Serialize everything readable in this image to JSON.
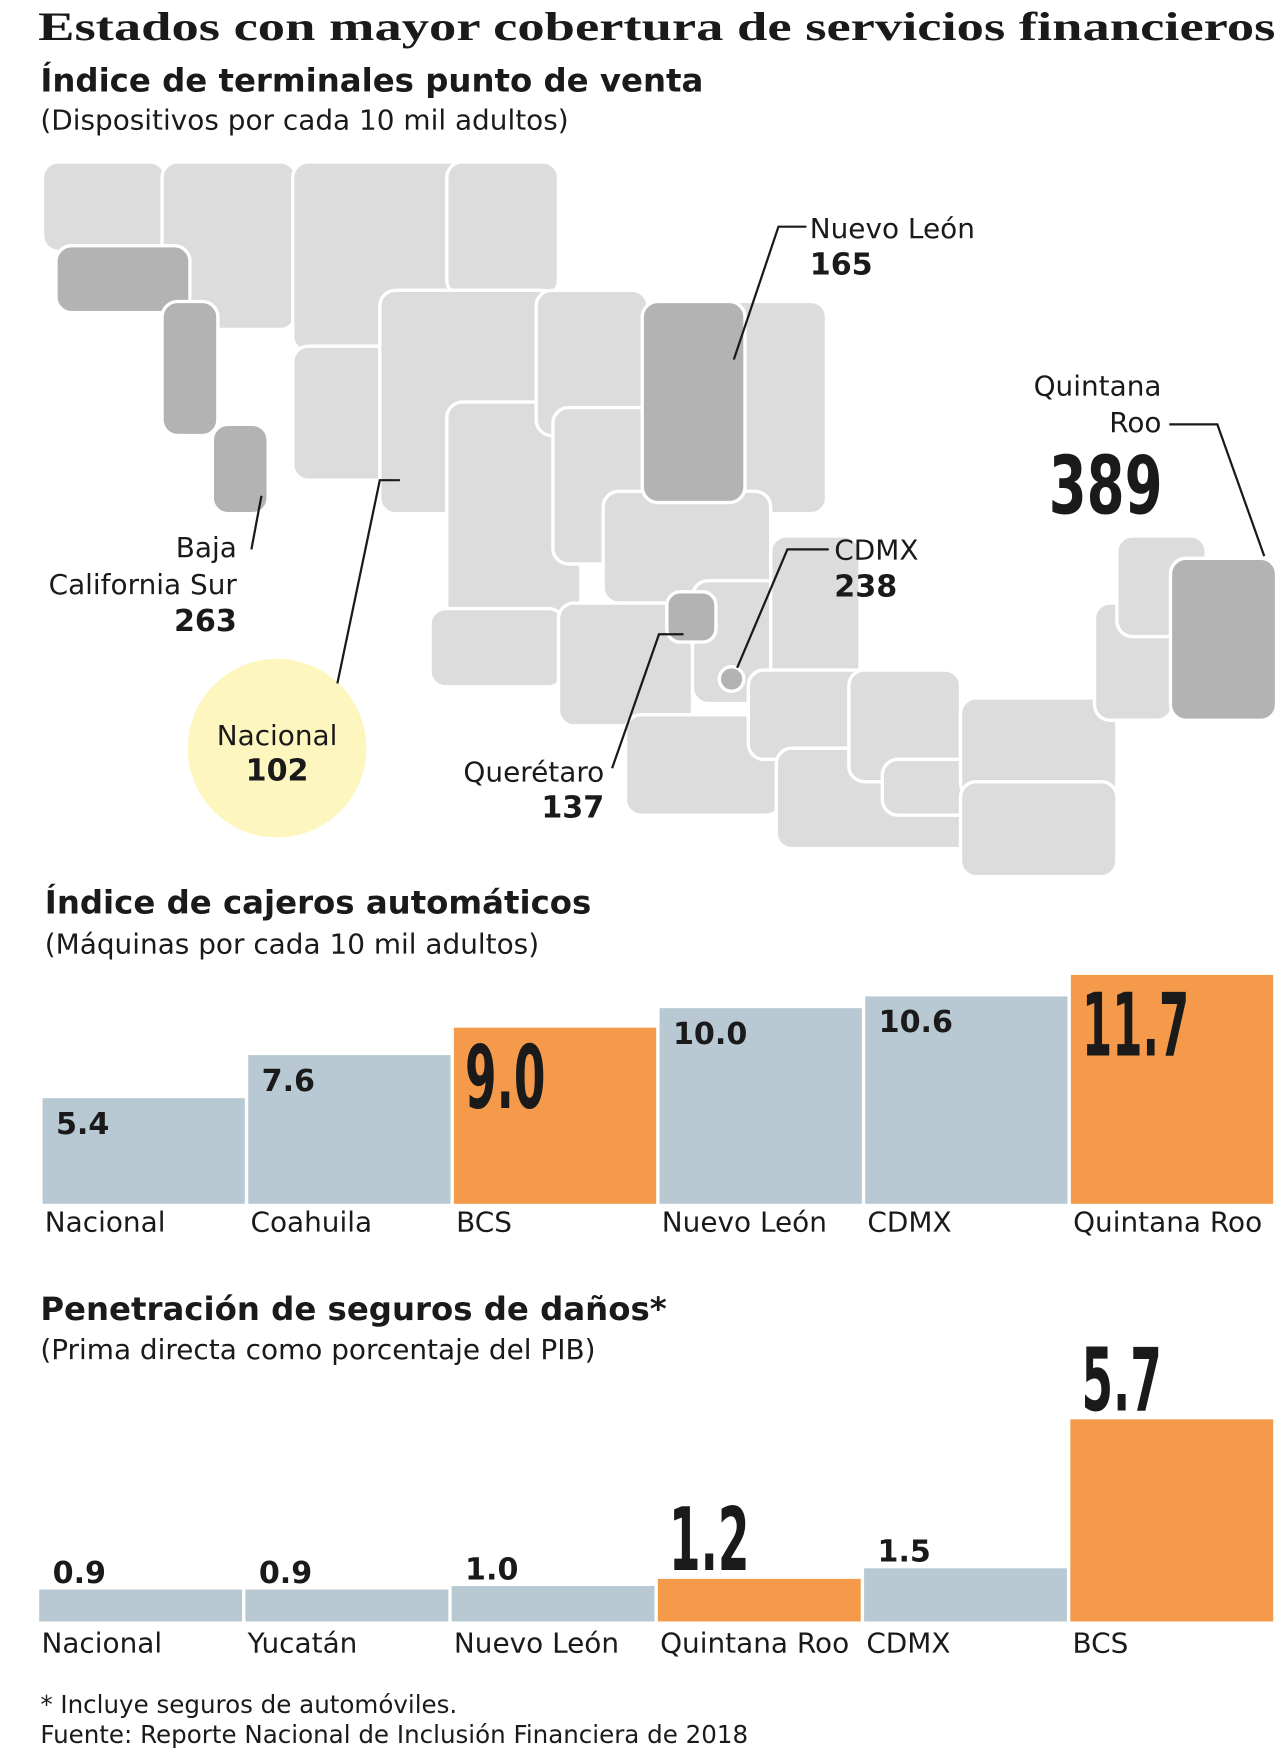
{
  "title": "Estados con mayor cobertura de servicios financieros",
  "chart_data": [
    {
      "type": "map",
      "title": "Índice de terminales punto de venta",
      "subtitle": "(Dispositivos por cada 10 mil adultos)",
      "regions": [
        {
          "name": [
            "Nuevo León"
          ],
          "value": 165
        },
        {
          "name": [
            "Quintana",
            "Roo"
          ],
          "value": 389
        },
        {
          "name": [
            "CDMX"
          ],
          "value": 238
        },
        {
          "name": [
            "Baja",
            "California Sur"
          ],
          "value": 263
        },
        {
          "name": [
            "Querétaro"
          ],
          "value": 137
        },
        {
          "name": [
            "Nacional"
          ],
          "value": 102
        }
      ]
    },
    {
      "type": "bar",
      "title": "Índice de cajeros automáticos",
      "subtitle": "(Máquinas por cada 10 mil adultos)",
      "categories": [
        "Nacional",
        "Coahuila",
        "BCS",
        "Nuevo León",
        "CDMX",
        "Quintana Roo"
      ],
      "values": [
        5.4,
        7.6,
        9.0,
        10.0,
        10.6,
        11.7
      ],
      "value_labels": [
        "5.4",
        "7.6",
        "9.0",
        "10.0",
        "10.6",
        "11.7"
      ],
      "colors": [
        "#b8c9d4",
        "#b8c9d4",
        "#f59a4a",
        "#b8c9d4",
        "#b8c9d4",
        "#f59a4a"
      ],
      "ylim": [
        0,
        11.7
      ],
      "label_position": "inside"
    },
    {
      "type": "bar",
      "title": "Penetración de seguros de daños*",
      "subtitle": "(Prima directa como porcentaje del PIB)",
      "categories": [
        "Nacional",
        "Yucatán",
        "Nuevo León",
        "Quintana Roo",
        "CDMX",
        "BCS"
      ],
      "values": [
        0.9,
        0.9,
        1.0,
        1.2,
        1.5,
        5.7
      ],
      "value_labels": [
        "0.9",
        "0.9",
        "1.0",
        "1.2",
        "1.5",
        "5.7"
      ],
      "colors": [
        "#b8c9d4",
        "#b8c9d4",
        "#b8c9d4",
        "#f59a4a",
        "#b8c9d4",
        "#f59a4a"
      ],
      "ylim": [
        0,
        5.7
      ],
      "label_position": "above"
    }
  ],
  "footnotes": [
    "* Incluye seguros de automóviles.",
    "Fuente: Reporte Nacional de Inclusión Financiera de 2018"
  ]
}
